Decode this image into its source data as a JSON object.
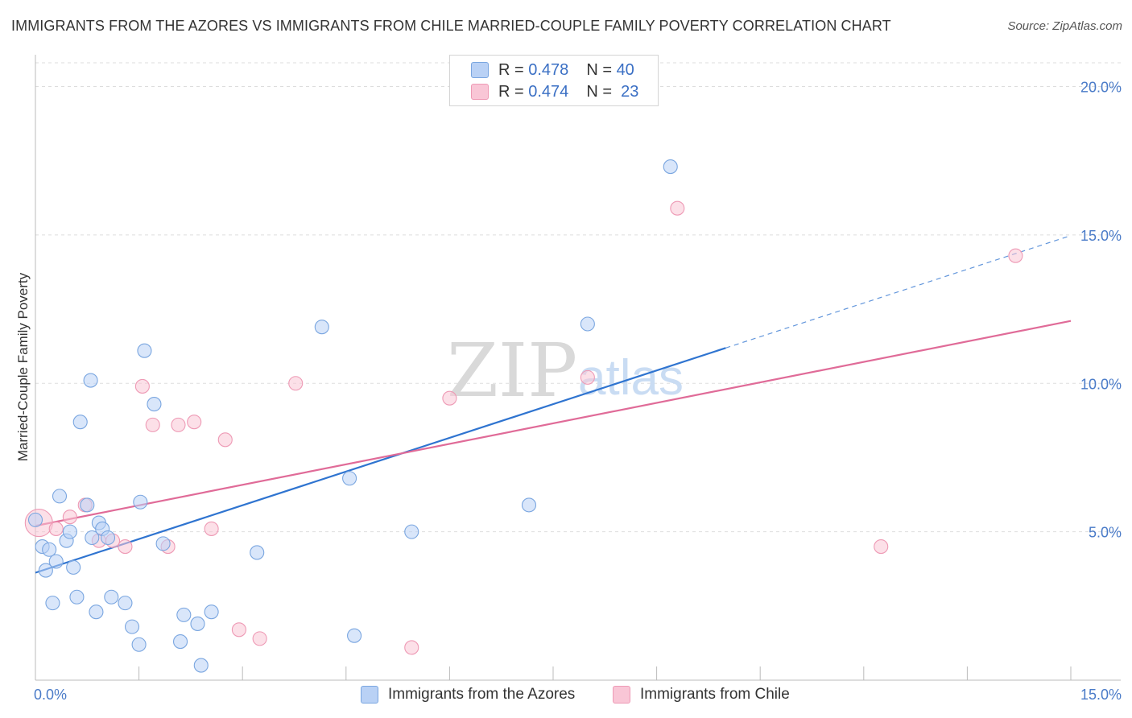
{
  "title": "IMMIGRANTS FROM THE AZORES VS IMMIGRANTS FROM CHILE MARRIED-COUPLE FAMILY POVERTY CORRELATION CHART",
  "source": "Source: ZipAtlas.com",
  "watermark": {
    "zip": "ZIP",
    "atlas": "atlas"
  },
  "colors": {
    "azores_fill": "#b9d1f5",
    "azores_stroke": "#7aa6e0",
    "azores_line": "#2f74d0",
    "chile_fill": "#f9c6d6",
    "chile_stroke": "#ee9ab5",
    "chile_line": "#e06b98",
    "tick_text": "#4a7bc8",
    "grid": "#dddddd"
  },
  "legend": {
    "rows": [
      {
        "r_label": "R = ",
        "r_value": "0.478",
        "n_label": "N = ",
        "n_value": "40"
      },
      {
        "r_label": "R = ",
        "r_value": "0.474",
        "n_label": "N = ",
        "n_value": "23"
      }
    ]
  },
  "bottom_legend": {
    "azores": "Immigrants from the Azores",
    "chile": "Immigrants from Chile"
  },
  "chart_data": {
    "type": "scatter",
    "title": "IMMIGRANTS FROM THE AZORES VS IMMIGRANTS FROM CHILE MARRIED-COUPLE FAMILY POVERTY CORRELATION CHART",
    "xlabel": "",
    "ylabel": "Married-Couple Family Poverty",
    "xlim": [
      0,
      15
    ],
    "ylim": [
      0,
      20.8
    ],
    "x_tick_labels": [
      {
        "value": 0,
        "label": "0.0%"
      },
      {
        "value": 15,
        "label": "15.0%"
      }
    ],
    "x_minor_ticks": [
      1.5,
      3.0,
      4.5,
      6.0,
      7.5,
      9.0,
      10.5,
      12.0,
      13.5,
      15.0
    ],
    "y_ticks": [
      {
        "value": 5,
        "label": "5.0%"
      },
      {
        "value": 10,
        "label": "10.0%"
      },
      {
        "value": 15,
        "label": "15.0%"
      },
      {
        "value": 20,
        "label": "20.0%"
      }
    ],
    "series": [
      {
        "name": "Immigrants from the Azores",
        "R": 0.478,
        "N": 40,
        "trend": {
          "x0": 0,
          "y0": 3.62,
          "x_solid_end": 10.0,
          "x1": 15.0,
          "slope": 0.7572
        },
        "points": [
          [
            0.0,
            5.4
          ],
          [
            0.1,
            4.5
          ],
          [
            0.15,
            3.7
          ],
          [
            0.2,
            4.4
          ],
          [
            0.25,
            2.6
          ],
          [
            0.3,
            4.0
          ],
          [
            0.35,
            6.2
          ],
          [
            0.45,
            4.7
          ],
          [
            0.5,
            5.0
          ],
          [
            0.55,
            3.8
          ],
          [
            0.6,
            2.8
          ],
          [
            0.65,
            8.7
          ],
          [
            0.75,
            5.9
          ],
          [
            0.8,
            10.1
          ],
          [
            0.82,
            4.8
          ],
          [
            0.88,
            2.3
          ],
          [
            0.92,
            5.3
          ],
          [
            0.97,
            5.1
          ],
          [
            1.05,
            4.8
          ],
          [
            1.1,
            2.8
          ],
          [
            1.3,
            2.6
          ],
          [
            1.4,
            1.8
          ],
          [
            1.5,
            1.2
          ],
          [
            1.52,
            6.0
          ],
          [
            1.58,
            11.1
          ],
          [
            1.72,
            9.3
          ],
          [
            1.85,
            4.6
          ],
          [
            2.1,
            1.3
          ],
          [
            2.15,
            2.2
          ],
          [
            2.35,
            1.9
          ],
          [
            2.4,
            0.5
          ],
          [
            2.55,
            2.3
          ],
          [
            3.21,
            4.3
          ],
          [
            4.15,
            11.9
          ],
          [
            4.55,
            6.8
          ],
          [
            4.62,
            1.5
          ],
          [
            5.45,
            5.0
          ],
          [
            7.15,
            5.9
          ],
          [
            8.0,
            12.0
          ],
          [
            9.2,
            17.3
          ]
        ]
      },
      {
        "name": "Immigrants from Chile",
        "R": 0.474,
        "N": 23,
        "trend": {
          "x0": 0,
          "y0": 5.2,
          "x1": 15.0,
          "slope": 0.4602
        },
        "points": [
          [
            0.05,
            5.3
          ],
          [
            0.3,
            5.1
          ],
          [
            0.5,
            5.5
          ],
          [
            0.72,
            5.9
          ],
          [
            0.92,
            4.7
          ],
          [
            1.12,
            4.7
          ],
          [
            1.3,
            4.5
          ],
          [
            1.55,
            9.9
          ],
          [
            1.7,
            8.6
          ],
          [
            1.92,
            4.5
          ],
          [
            2.07,
            8.6
          ],
          [
            2.3,
            8.7
          ],
          [
            2.55,
            5.1
          ],
          [
            2.75,
            8.1
          ],
          [
            2.95,
            1.7
          ],
          [
            3.25,
            1.4
          ],
          [
            3.77,
            10.0
          ],
          [
            5.45,
            1.1
          ],
          [
            6.0,
            9.5
          ],
          [
            8.0,
            10.2
          ],
          [
            9.3,
            15.9
          ],
          [
            12.25,
            4.5
          ],
          [
            14.2,
            14.3
          ]
        ]
      }
    ]
  }
}
